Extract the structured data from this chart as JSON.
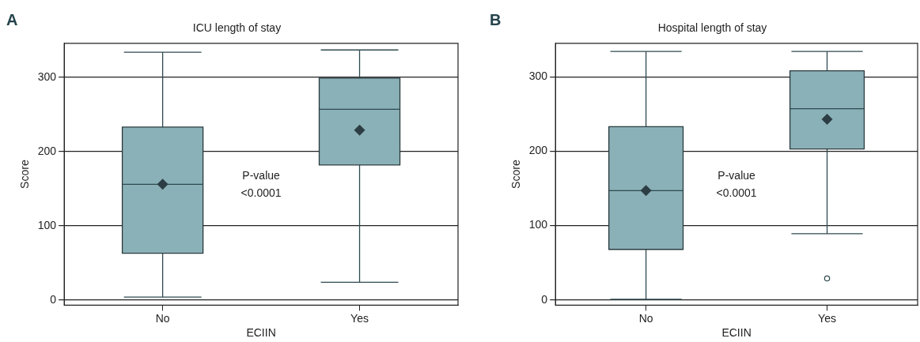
{
  "chart_data": [
    {
      "type": "box",
      "title": "ICU length of stay",
      "xlabel": "ECIIN",
      "ylabel": "Score",
      "categories": [
        "No",
        "Yes"
      ],
      "series": [
        {
          "color": "#8ab1b7",
          "boxes": [
            {
              "low": 4,
              "q1": 63,
              "median": 156,
              "q3": 233,
              "high": 334,
              "mean": 156
            },
            {
              "low": 24,
              "q1": 182,
              "median": 257,
              "q3": 299,
              "high": 337,
              "mean": 229
            }
          ]
        }
      ],
      "ylim": [
        -7,
        346
      ],
      "yticks": [
        0,
        100,
        200,
        300
      ],
      "grid": "y",
      "legend": false,
      "annotations": [
        "A",
        "P-value\n<0.0001"
      ]
    },
    {
      "type": "box",
      "title": "Hospital length of stay",
      "xlabel": "ECIIN",
      "ylabel": "Score",
      "categories": [
        "No",
        "Yes"
      ],
      "series": [
        {
          "color": "#8ab1b7",
          "boxes": [
            {
              "low": 1,
              "q1": 68,
              "median": 147,
              "q3": 233,
              "high": 334,
              "mean": 147
            },
            {
              "low": 89,
              "q1": 203,
              "median": 257,
              "q3": 308,
              "high": 334,
              "mean": 243,
              "outliers": [
                29
              ]
            }
          ]
        }
      ],
      "ylim": [
        -7,
        345
      ],
      "yticks": [
        0,
        100,
        200,
        300
      ],
      "grid": "y",
      "legend": false,
      "annotations": [
        "B",
        "P-value\n<0.0001"
      ]
    }
  ]
}
